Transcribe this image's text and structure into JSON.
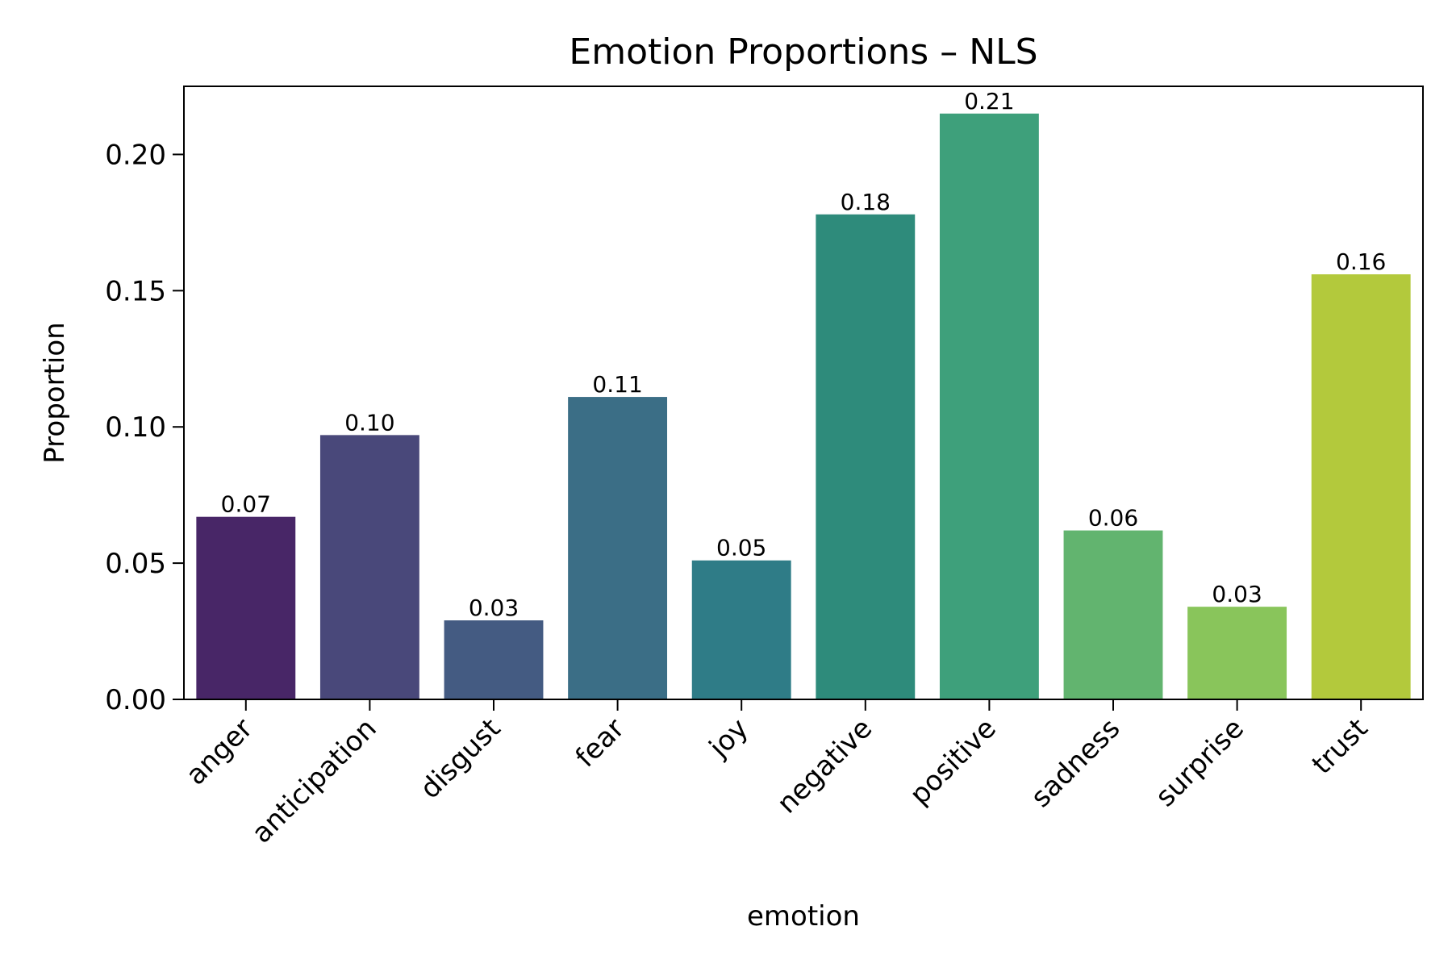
{
  "chart_data": {
    "type": "bar",
    "title": "Emotion Proportions – NLS",
    "xlabel": "emotion",
    "ylabel": "Proportion",
    "categories": [
      "anger",
      "anticipation",
      "disgust",
      "fear",
      "joy",
      "negative",
      "positive",
      "sadness",
      "surprise",
      "trust"
    ],
    "values": [
      0.067,
      0.097,
      0.029,
      0.111,
      0.051,
      0.178,
      0.215,
      0.062,
      0.034,
      0.156
    ],
    "value_labels": [
      "0.07",
      "0.10",
      "0.03",
      "0.11",
      "0.05",
      "0.18",
      "0.21",
      "0.06",
      "0.03",
      "0.16"
    ],
    "ylim": [
      0,
      0.225
    ],
    "yticks": [
      0.0,
      0.05,
      0.1,
      0.15,
      0.2
    ],
    "ytick_labels": [
      "0.00",
      "0.05",
      "0.10",
      "0.15",
      "0.20"
    ],
    "colors": [
      "#482667",
      "#49487a",
      "#445b82",
      "#3b6e86",
      "#2f7c87",
      "#2e8b7b",
      "#3ea07b",
      "#62b46f",
      "#89c55b",
      "#b3c93c"
    ],
    "grid": false,
    "legend": "none"
  }
}
